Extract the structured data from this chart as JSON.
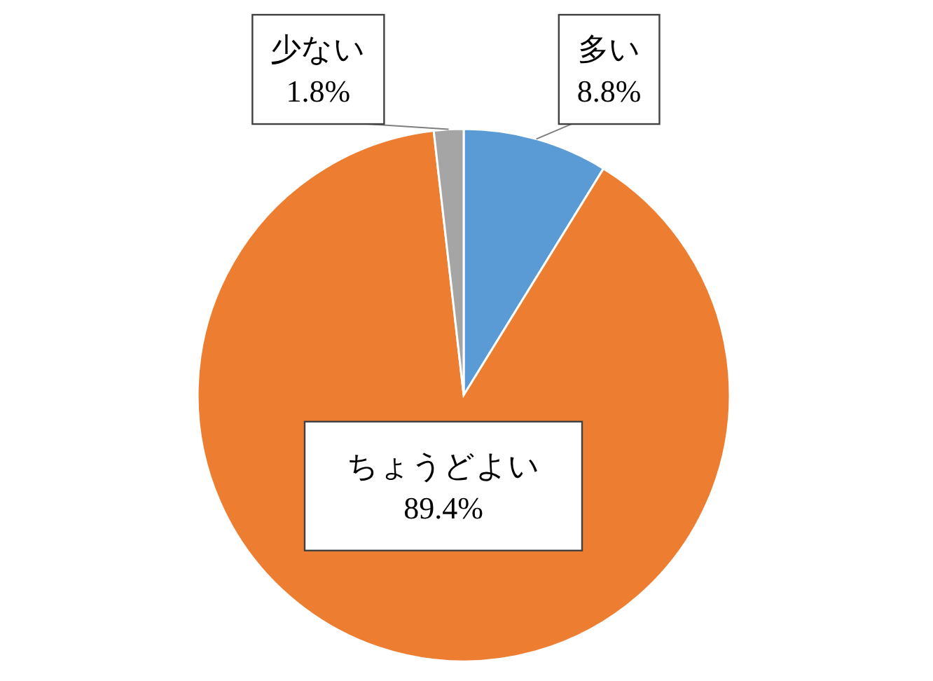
{
  "chart_data": {
    "type": "pie",
    "categories": [
      "多い",
      "ちょうどよい",
      "少ない"
    ],
    "values": [
      8.8,
      89.4,
      1.8
    ],
    "colors": [
      "#5b9bd5",
      "#ed7d31",
      "#a5a5a5"
    ],
    "value_labels": [
      "8.8%",
      "89.4%",
      "1.8%"
    ]
  }
}
